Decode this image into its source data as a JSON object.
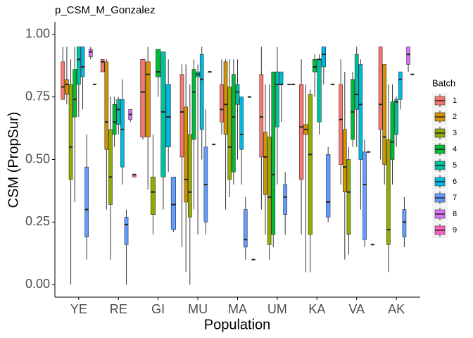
{
  "chart_data": {
    "type": "box",
    "title": "p_CSM_M_Gonzalez",
    "x_label": "Population",
    "y_label": "CSM (PropSur)",
    "legend_title": "Batch",
    "legend_position": "right",
    "grid": false,
    "categories": [
      "YE",
      "RE",
      "GI",
      "MU",
      "MA",
      "UM",
      "KA",
      "VA",
      "AK"
    ],
    "ylim": [
      -0.05,
      1.05
    ],
    "yticks": [
      {
        "value": 0,
        "label": "0.00"
      },
      {
        "value": 0.25,
        "label": "0.25"
      },
      {
        "value": 0.5,
        "label": "0.50"
      },
      {
        "value": 0.75,
        "label": "0.75"
      },
      {
        "value": 1,
        "label": "1.00"
      }
    ],
    "series": [
      {
        "name": "1",
        "color": "#F8766D",
        "values": [
          [
            0.74,
            0.74,
            0.79,
            0.89,
            0.95
          ],
          [
            0.85,
            0.85,
            0.89,
            0.9,
            0.9
          ],
          [
            0.58,
            0.59,
            0.77,
            0.9,
            0.9
          ],
          [
            0.15,
            0.51,
            0.69,
            0.84,
            0.88
          ],
          [
            0.6,
            0.65,
            0.7,
            0.8,
            0.9
          ],
          [
            0.3,
            0.51,
            0.67,
            0.84,
            0.95
          ],
          [
            0.2,
            0.42,
            0.63,
            0.8,
            0.9
          ],
          [
            0.4,
            0.48,
            0.66,
            0.8,
            0.9
          ],
          [
            0.5,
            0.62,
            0.72,
            0.95,
            0.95
          ]
        ]
      },
      {
        "name": "2",
        "color": "#D39200",
        "values": [
          [
            0.72,
            0.76,
            0.8,
            0.82,
            0.95
          ],
          [
            0.3,
            0.54,
            0.65,
            0.89,
            0.9
          ],
          [
            0.38,
            0.59,
            0.84,
            0.89,
            0.95
          ],
          [
            0.05,
            0.33,
            0.42,
            0.71,
            0.88
          ],
          [
            0.3,
            0.6,
            0.72,
            0.89,
            0.9
          ],
          [
            0.2,
            0.36,
            0.51,
            0.61,
            0.8
          ],
          [
            0.05,
            0.6,
            0.62,
            0.64,
            0.8
          ],
          [
            0.1,
            0.37,
            0.47,
            0.62,
            0.85
          ],
          [
            0.4,
            0.48,
            0.59,
            0.88,
            0.88
          ]
        ]
      },
      {
        "name": "3",
        "color": "#93AA00",
        "values": [
          [
            0,
            0.42,
            0.55,
            0.8,
            0.9
          ],
          [
            0.1,
            0.32,
            0.43,
            0.62,
            0.75
          ],
          [
            0.2,
            0.28,
            0.37,
            0.43,
            0.6
          ],
          [
            0,
            0.27,
            0.37,
            0.6,
            0.8
          ],
          [
            0.35,
            0.42,
            0.55,
            0.79,
            0.9
          ],
          [
            0.1,
            0.16,
            0.35,
            0.59,
            0.8
          ],
          [
            0.05,
            0.2,
            0.52,
            0.76,
            0.78
          ],
          [
            0.12,
            0.2,
            0.37,
            0.5,
            0.55
          ],
          [
            0.05,
            0.16,
            0.22,
            0.58,
            0.8
          ]
        ]
      },
      {
        "name": "4",
        "color": "#00BA38",
        "values": [
          [
            0.33,
            0.67,
            0.74,
            0.86,
            0.95
          ],
          [
            0.55,
            0.6,
            0.65,
            0.72,
            0.75
          ],
          [
            0.75,
            0.83,
            0.85,
            0.94,
            0.94
          ],
          [
            0.3,
            0.58,
            0.77,
            0.86,
            0.9
          ],
          [
            0.4,
            0.45,
            0.67,
            0.84,
            0.9
          ],
          [
            0.15,
            0.2,
            0.44,
            0.85,
            0.85
          ],
          [
            0.75,
            0.85,
            0.87,
            0.9,
            0.92
          ],
          [
            0.55,
            0.58,
            0.69,
            0.82,
            0.85
          ],
          [
            0.4,
            0.5,
            0.57,
            0.73,
            0.8
          ]
        ]
      },
      {
        "name": "5",
        "color": "#00C19F",
        "values": [
          [
            0.67,
            0.8,
            0.9,
            0.95,
            0.95
          ],
          [
            0.6,
            0.64,
            0.7,
            0.74,
            0.75
          ],
          [
            0.3,
            0.43,
            0.69,
            0.93,
            0.93
          ],
          [
            0.2,
            0.83,
            0.84,
            0.85,
            0.88
          ],
          [
            0.5,
            0.72,
            0.77,
            0.8,
            0.9
          ],
          [
            0.4,
            0.63,
            0.8,
            0.85,
            0.95
          ],
          [
            0.6,
            0.65,
            0.9,
            0.9,
            0.92
          ],
          [
            0.55,
            0.7,
            0.76,
            0.92,
            0.95
          ],
          [
            0.55,
            0.6,
            0.73,
            0.74,
            0.75
          ]
        ]
      },
      {
        "name": "6",
        "color": "#00B9E3",
        "values": [
          [
            0.7,
            0.83,
            0.87,
            0.95,
            0.95
          ],
          [
            0.4,
            0.47,
            0.62,
            0.74,
            0.82
          ],
          [
            0.45,
            0.55,
            0.67,
            0.8,
            0.9
          ],
          [
            0.5,
            0.62,
            0.82,
            0.92,
            0.95
          ],
          [
            0.4,
            0.54,
            0.6,
            0.75,
            0.75
          ],
          [
            0.65,
            0.8,
            0.8,
            0.85,
            0.85
          ],
          [
            0.8,
            0.87,
            0.92,
            0.95,
            0.95
          ],
          [
            0.3,
            0.5,
            0.72,
            0.88,
            0.9
          ],
          [
            0.7,
            0.74,
            0.82,
            0.85,
            0.85
          ]
        ]
      },
      {
        "name": "7",
        "color": "#619CFF",
        "values": [
          [
            0.1,
            0.19,
            0.3,
            0.47,
            0.6
          ],
          [
            0,
            0.16,
            0.24,
            0.27,
            0.3
          ],
          [
            0.21,
            0.22,
            0.32,
            0.43,
            0.43
          ],
          [
            0.2,
            0.25,
            0.4,
            0.55,
            0.7
          ],
          [
            0.1,
            0.15,
            0.18,
            0.3,
            0.35
          ],
          [
            0.2,
            0.28,
            0.35,
            0.4,
            0.45
          ],
          [
            0.25,
            0.27,
            0.33,
            0.52,
            0.55
          ],
          [
            0.15,
            0.18,
            0.4,
            0.53,
            0.58
          ],
          [
            0.15,
            0.19,
            0.25,
            0.3,
            0.35
          ]
        ]
      },
      {
        "name": "8",
        "color": "#DB72FB",
        "values": [
          [
            0.9,
            0.91,
            0.93,
            0.94,
            0.95
          ],
          [
            0.65,
            0.66,
            0.68,
            0.7,
            0.7
          ],
          null,
          [
            0.85,
            0.85,
            0.85,
            0.85,
            0.85
          ],
          [
            0.75,
            0.75,
            0.75,
            0.75,
            0.75
          ],
          [
            0.8,
            0.8,
            0.8,
            0.8,
            0.8
          ],
          [
            0.8,
            0.8,
            0.8,
            0.8,
            0.8
          ],
          [
            0.53,
            0.53,
            0.53,
            0.53,
            0.53
          ],
          [
            0.85,
            0.88,
            0.92,
            0.95,
            0.95
          ]
        ]
      },
      {
        "name": "9",
        "color": "#FF61C3",
        "values": [
          [
            0.8,
            0.8,
            0.8,
            0.8,
            0.8
          ],
          [
            0.43,
            0.43,
            0.44,
            0.44,
            0.44
          ],
          null,
          [
            0.56,
            0.56,
            0.56,
            0.56,
            0.56
          ],
          [
            0.1,
            0.1,
            0.1,
            0.1,
            0.1
          ],
          [
            0.8,
            0.8,
            0.8,
            0.8,
            0.8
          ],
          null,
          [
            0.16,
            0.16,
            0.16,
            0.16,
            0.16
          ],
          [
            0.84,
            0.84,
            0.84,
            0.84,
            0.84
          ]
        ]
      }
    ]
  }
}
